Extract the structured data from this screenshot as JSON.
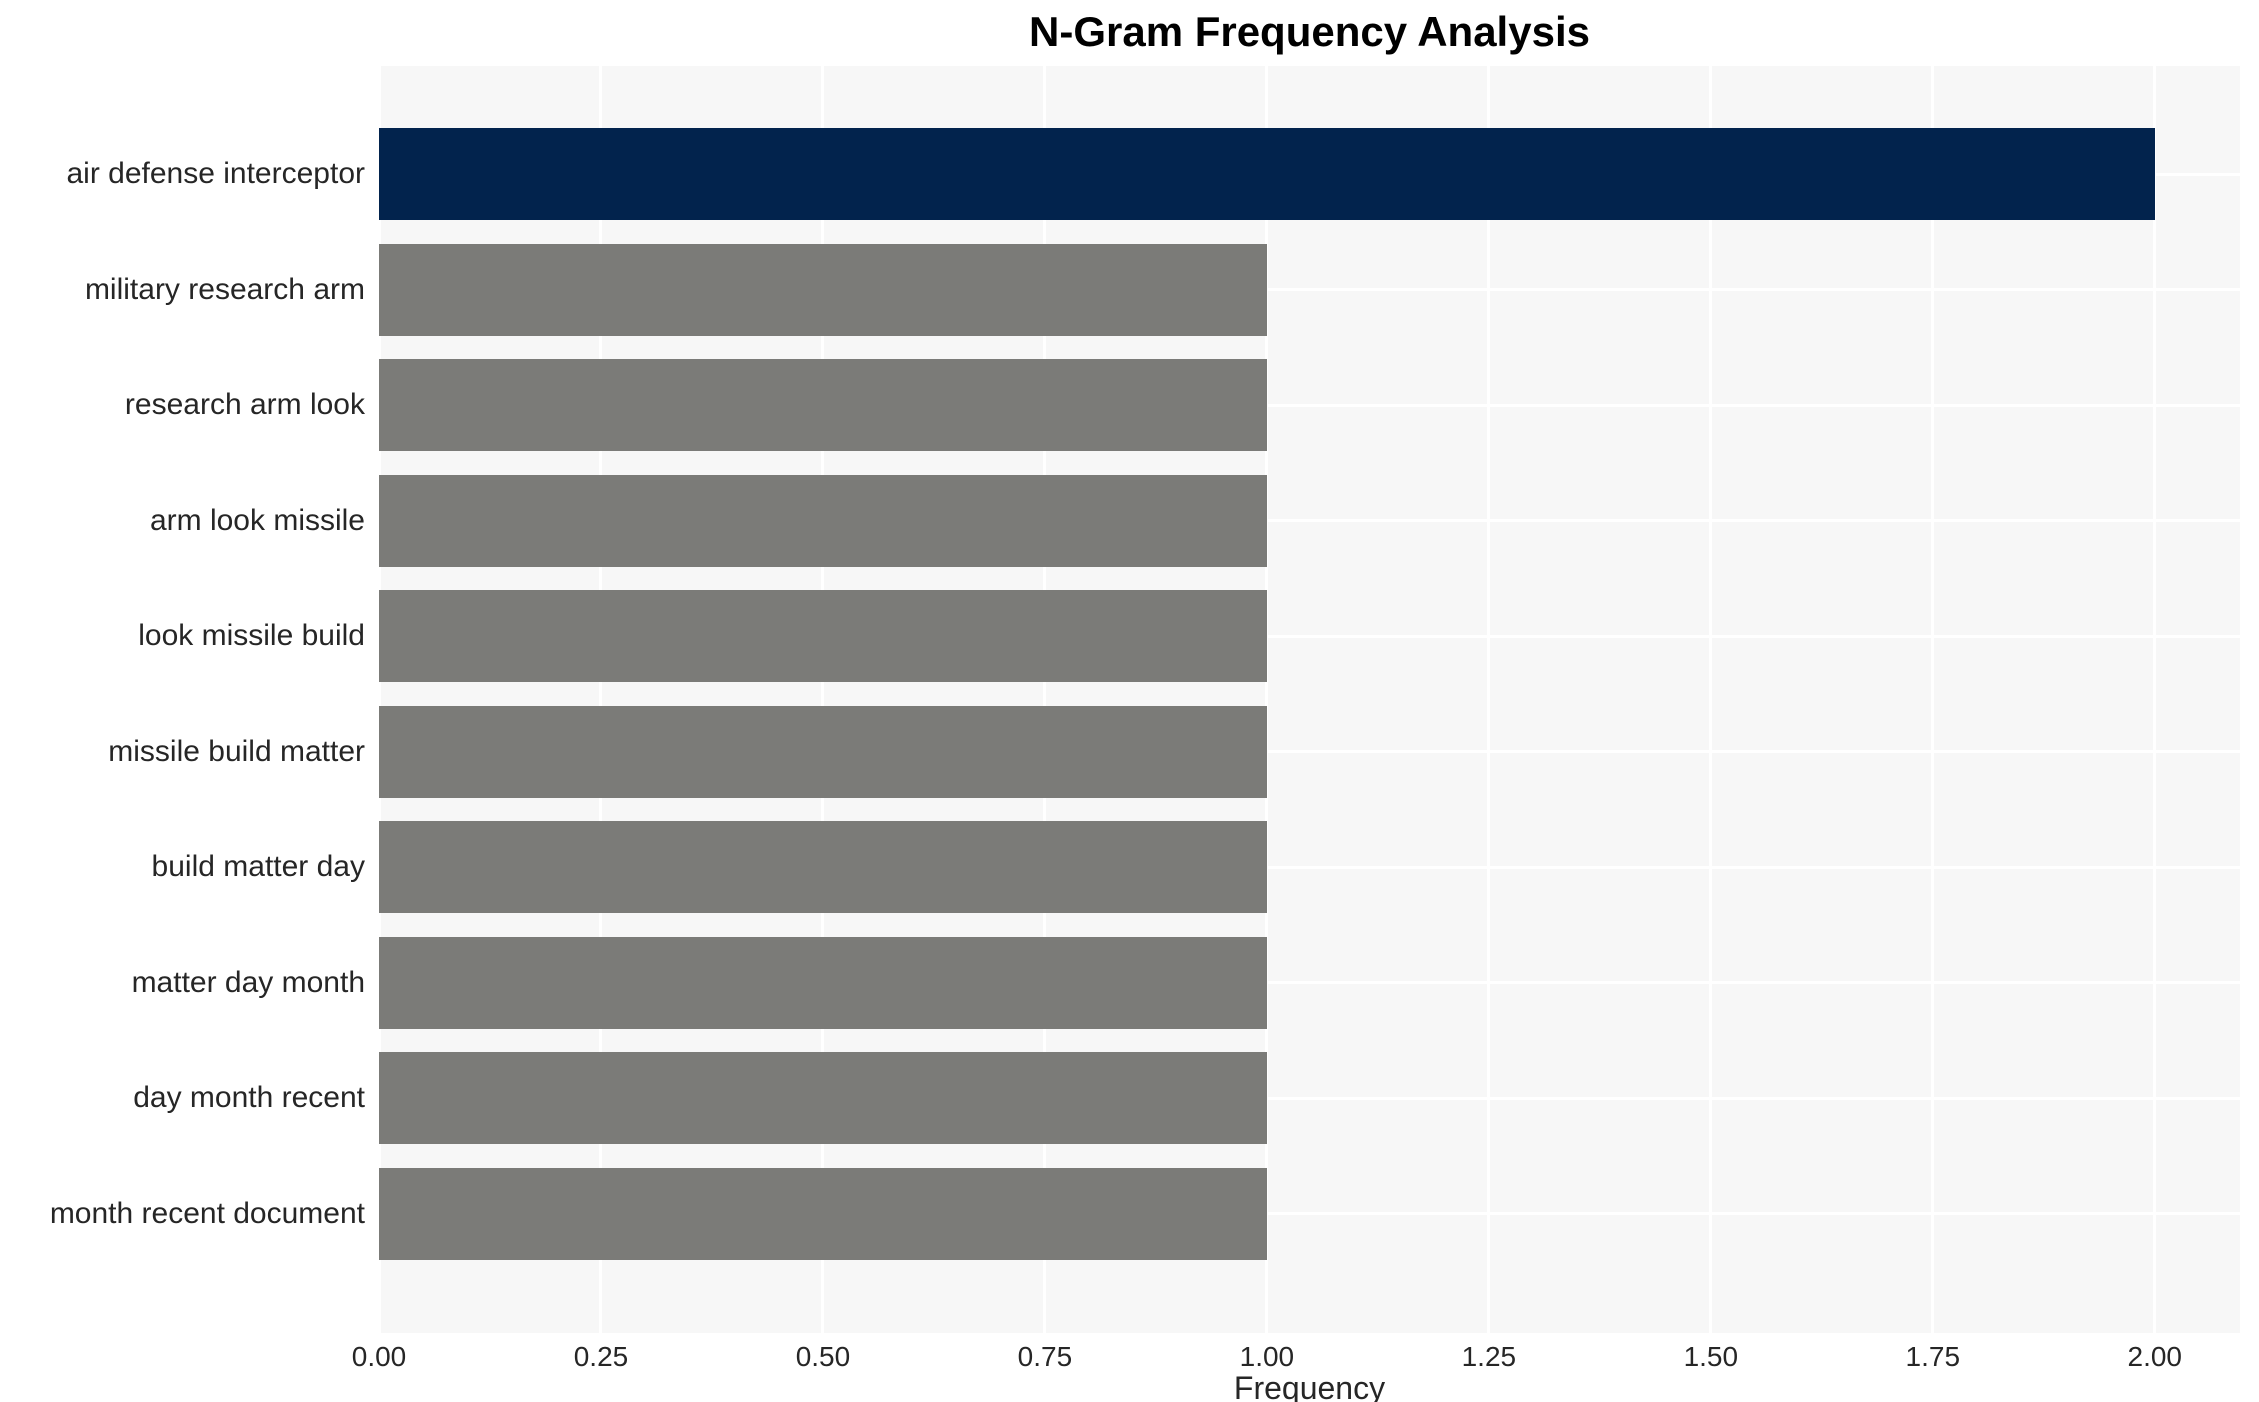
{
  "chart_data": {
    "type": "bar",
    "orientation": "horizontal",
    "title": "N-Gram Frequency Analysis",
    "xlabel": "Frequency",
    "ylabel": "",
    "categories": [
      "air defense interceptor",
      "military research arm",
      "research arm look",
      "arm look missile",
      "look missile build",
      "missile build matter",
      "build matter day",
      "matter day month",
      "day month recent",
      "month recent document"
    ],
    "values": [
      2,
      1,
      1,
      1,
      1,
      1,
      1,
      1,
      1,
      1
    ],
    "bar_colors": [
      "#02234d",
      "#7b7b78",
      "#7b7b78",
      "#7b7b78",
      "#7b7b78",
      "#7b7b78",
      "#7b7b78",
      "#7b7b78",
      "#7b7b78",
      "#7b7b78"
    ],
    "xlim": [
      0,
      2.096
    ],
    "x_tick_labels": [
      "0.00",
      "0.25",
      "0.50",
      "0.75",
      "1.00",
      "1.25",
      "1.50",
      "1.75",
      "2.00"
    ],
    "x_tick_values": [
      0,
      0.25,
      0.5,
      0.75,
      1.0,
      1.25,
      1.5,
      1.75,
      2.0
    ],
    "grid": "on",
    "legend": "none",
    "colors": {
      "plot_background": "#f7f7f7",
      "grid_line": "#ffffff",
      "title_text": "#000000",
      "axis_text": "#262626"
    }
  }
}
